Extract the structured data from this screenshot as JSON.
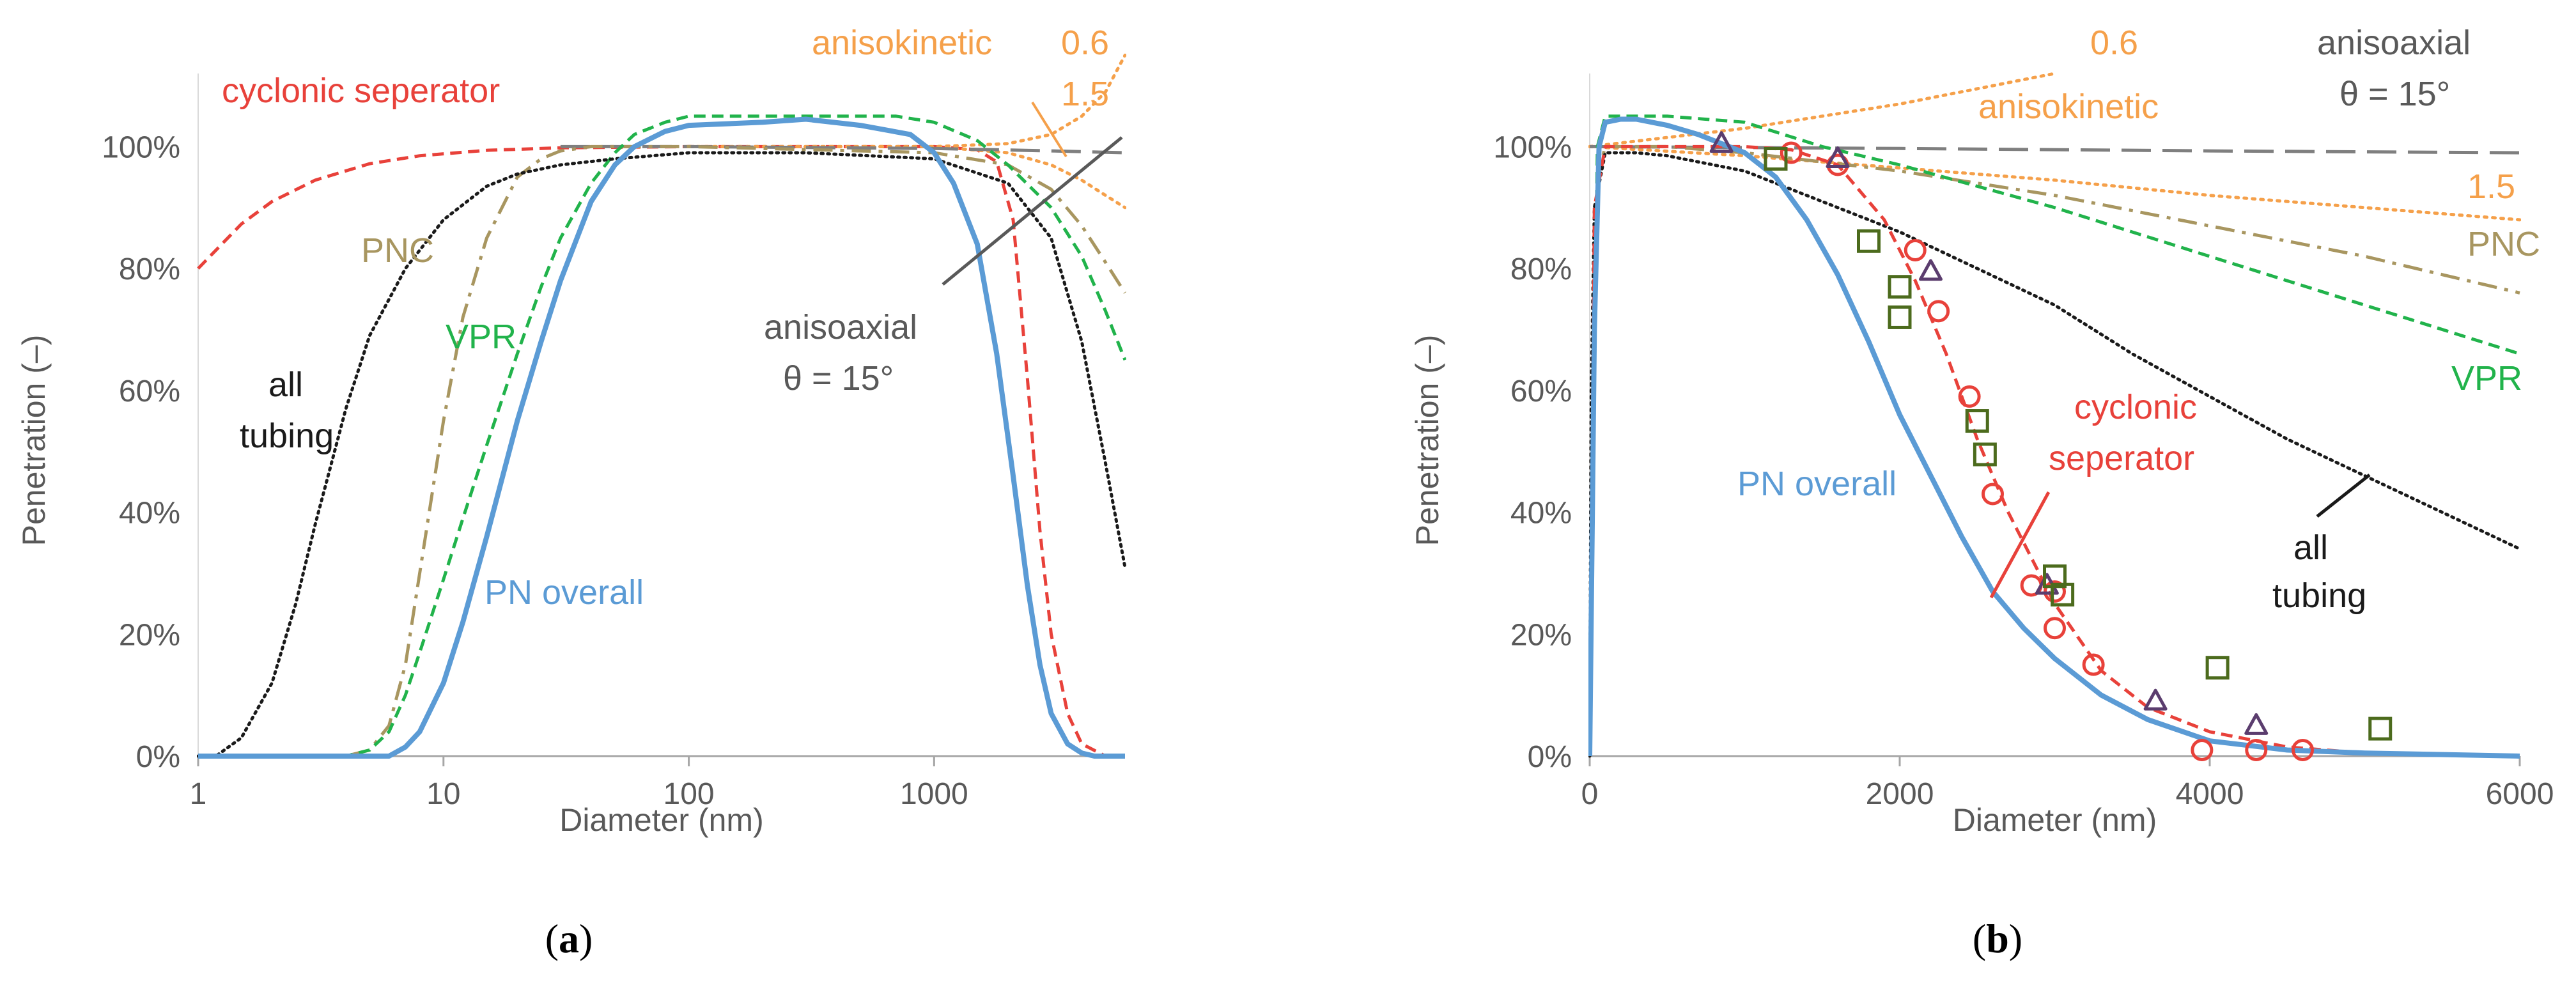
{
  "colors": {
    "cyclonic": "#E8413A",
    "anisokinetic": "#F5A04A",
    "anisoaxial": "#7F7F7F",
    "pnc": "#A89660",
    "vpr": "#21B34B",
    "tubing": "#1A1A1A",
    "pn_overall": "#5B9BD5",
    "triangle": "#5B3D6E",
    "square": "#4C6B1D",
    "axis_text": "#595959",
    "annotation_gray": "#595959"
  },
  "chart_data": [
    {
      "id": "a",
      "type": "line",
      "title": "",
      "xlabel": "Diameter (nm)",
      "ylabel": "Penetration (–)",
      "xscale": "log",
      "xlim": [
        1,
        6000
      ],
      "ylim": [
        0,
        1.12
      ],
      "x_ticks": [
        1,
        10,
        100,
        1000
      ],
      "x_tick_labels": [
        "1",
        "10",
        "100",
        "1000"
      ],
      "y_ticks": [
        0,
        0.2,
        0.4,
        0.6,
        0.8,
        1.0
      ],
      "y_tick_labels": [
        "0%",
        "20%",
        "40%",
        "60%",
        "80%",
        "100%"
      ],
      "grid": false,
      "panel_label": {
        "open": "(",
        "letter": "a",
        "close": ")"
      },
      "series": [
        {
          "name": "cyclonic seperator",
          "color_key": "cyclonic",
          "dash": "dash",
          "x": [
            1,
            1.5,
            2,
            3,
            5,
            8,
            15,
            30,
            100,
            500,
            1000,
            1500,
            1800,
            2100,
            2400,
            2700,
            3000,
            3500,
            4000,
            5000
          ],
          "y": [
            0.8,
            0.873,
            0.91,
            0.945,
            0.972,
            0.985,
            0.994,
            0.998,
            1.0,
            1.0,
            1.0,
            0.995,
            0.975,
            0.88,
            0.62,
            0.37,
            0.2,
            0.07,
            0.02,
            0.0
          ]
        },
        {
          "name": "anisokinetic 0.6",
          "color_key": "anisokinetic",
          "dash": "dot",
          "x": [
            100,
            500,
            1000,
            2000,
            3000,
            4000,
            5000,
            6000
          ],
          "y": [
            1.0,
            1.0,
            1.0,
            1.005,
            1.02,
            1.05,
            1.09,
            1.15
          ]
        },
        {
          "name": "anisokinetic 1.5",
          "color_key": "anisokinetic",
          "dash": "dot",
          "x": [
            100,
            500,
            1000,
            2000,
            3000,
            4000,
            5000,
            6000
          ],
          "y": [
            1.0,
            1.0,
            1.0,
            0.99,
            0.97,
            0.945,
            0.92,
            0.9
          ]
        },
        {
          "name": "anisoaxial θ = 15°",
          "color_key": "anisoaxial",
          "dash": "longdash",
          "x": [
            30,
            100,
            1000,
            3000,
            6000
          ],
          "y": [
            1.0,
            1.0,
            0.997,
            0.993,
            0.99
          ]
        },
        {
          "name": "PNC",
          "color_key": "pnc",
          "dash": "dashdot",
          "x": [
            1,
            4,
            5,
            6,
            7,
            8,
            10,
            12,
            15,
            20,
            25,
            30,
            40,
            60,
            100,
            1000,
            2000,
            3000,
            4000,
            5000,
            6000
          ],
          "y": [
            0,
            0,
            0.01,
            0.05,
            0.15,
            0.3,
            0.55,
            0.72,
            0.85,
            0.95,
            0.98,
            0.993,
            1.0,
            1.0,
            1.0,
            0.99,
            0.97,
            0.93,
            0.87,
            0.81,
            0.76
          ]
        },
        {
          "name": "VPR",
          "color_key": "vpr",
          "dash": "dash",
          "x": [
            1,
            4,
            5,
            6,
            7,
            8,
            10,
            12,
            15,
            20,
            25,
            30,
            40,
            50,
            60,
            80,
            100,
            200,
            700,
            1000,
            1500,
            2000,
            3000,
            4000,
            5000,
            6000
          ],
          "y": [
            0,
            0,
            0.01,
            0.04,
            0.1,
            0.17,
            0.29,
            0.39,
            0.51,
            0.66,
            0.77,
            0.85,
            0.94,
            0.99,
            1.02,
            1.04,
            1.05,
            1.05,
            1.05,
            1.04,
            1.01,
            0.97,
            0.9,
            0.82,
            0.73,
            0.65
          ]
        },
        {
          "name": "all tubing",
          "color_key": "tubing",
          "dash": "finedot",
          "x": [
            1,
            1.2,
            1.5,
            2,
            2.5,
            3,
            4,
            5,
            7,
            10,
            15,
            20,
            30,
            50,
            100,
            300,
            1000,
            2000,
            3000,
            4000,
            5000,
            6000
          ],
          "y": [
            0,
            0.002,
            0.03,
            0.12,
            0.25,
            0.38,
            0.57,
            0.69,
            0.8,
            0.88,
            0.935,
            0.955,
            0.97,
            0.98,
            0.99,
            0.99,
            0.98,
            0.94,
            0.85,
            0.68,
            0.48,
            0.31
          ]
        },
        {
          "name": "PN overall",
          "color_key": "pn_overall",
          "dash": "solid",
          "x": [
            1,
            5,
            6,
            7,
            8,
            10,
            12,
            15,
            20,
            25,
            30,
            40,
            50,
            60,
            80,
            100,
            200,
            300,
            500,
            800,
            1000,
            1200,
            1500,
            1800,
            2100,
            2400,
            2700,
            3000,
            3500,
            4000,
            4500,
            5000,
            6000
          ],
          "y": [
            0,
            0,
            0,
            0.015,
            0.04,
            0.12,
            0.22,
            0.36,
            0.55,
            0.68,
            0.78,
            0.91,
            0.97,
            1.0,
            1.025,
            1.035,
            1.04,
            1.045,
            1.035,
            1.02,
            0.99,
            0.94,
            0.84,
            0.66,
            0.46,
            0.28,
            0.15,
            0.07,
            0.02,
            0.005,
            0.0,
            0.0,
            0.0
          ]
        }
      ],
      "annotations": [
        {
          "text": "cyclonic seperator",
          "color_key": "cyclonic"
        },
        {
          "text": "anisokinetic",
          "color_key": "anisokinetic"
        },
        {
          "text": "0.6",
          "color_key": "anisokinetic"
        },
        {
          "text": "1.5",
          "color_key": "anisokinetic"
        },
        {
          "text": "PNC",
          "color_key": "pnc"
        },
        {
          "text": "VPR",
          "color_key": "vpr"
        },
        {
          "text": "all",
          "color_key": "tubing"
        },
        {
          "text": "tubing",
          "color_key": "tubing"
        },
        {
          "text": "anisoaxial",
          "color_key": "annotation_gray"
        },
        {
          "text": "θ = 15°",
          "color_key": "annotation_gray"
        },
        {
          "text": "PN overall",
          "color_key": "pn_overall"
        }
      ]
    },
    {
      "id": "b",
      "type": "line",
      "title": "",
      "xlabel": "Diameter (nm)",
      "ylabel": "Penetration (–)",
      "xscale": "linear",
      "xlim": [
        0,
        6000
      ],
      "ylim": [
        0,
        1.12
      ],
      "x_ticks": [
        0,
        2000,
        4000,
        6000
      ],
      "x_tick_labels": [
        "0",
        "2000",
        "4000",
        "6000"
      ],
      "y_ticks": [
        0,
        0.2,
        0.4,
        0.6,
        0.8,
        1.0
      ],
      "y_tick_labels": [
        "0%",
        "20%",
        "40%",
        "60%",
        "80%",
        "100%"
      ],
      "grid": false,
      "panel_label": {
        "open": "(",
        "letter": "b",
        "close": ")"
      },
      "series": [
        {
          "name": "anisokinetic 0.6",
          "color_key": "anisokinetic",
          "dash": "dot",
          "x": [
            0,
            1000,
            2000,
            3000
          ],
          "y": [
            1.0,
            1.03,
            1.07,
            1.12
          ]
        },
        {
          "name": "anisokinetic 1.5",
          "color_key": "anisokinetic",
          "dash": "dot",
          "x": [
            0,
            1000,
            2000,
            3000,
            4000,
            5000,
            6000
          ],
          "y": [
            1.0,
            0.985,
            0.965,
            0.945,
            0.92,
            0.9,
            0.88
          ]
        },
        {
          "name": "anisoaxial θ = 15°",
          "color_key": "anisoaxial",
          "dash": "longdash",
          "x": [
            0,
            2000,
            4000,
            6000
          ],
          "y": [
            1.0,
            0.997,
            0.993,
            0.99
          ]
        },
        {
          "name": "PNC",
          "color_key": "pnc",
          "dash": "dashdot",
          "x": [
            0,
            20,
            50,
            100,
            500,
            1000,
            2000,
            3000,
            4000,
            5000,
            6000
          ],
          "y": [
            0,
            0.5,
            0.95,
            1.0,
            1.0,
            0.99,
            0.96,
            0.92,
            0.87,
            0.82,
            0.76
          ]
        },
        {
          "name": "VPR",
          "color_key": "vpr",
          "dash": "dash",
          "x": [
            0,
            20,
            50,
            100,
            500,
            1000,
            1500,
            2000,
            3000,
            4000,
            5000,
            6000
          ],
          "y": [
            0,
            0.5,
            1.0,
            1.05,
            1.05,
            1.04,
            1.0,
            0.97,
            0.9,
            0.82,
            0.74,
            0.66
          ]
        },
        {
          "name": "all tubing",
          "color_key": "tubing",
          "dash": "finedot",
          "x": [
            0,
            10,
            30,
            100,
            300,
            500,
            1000,
            1500,
            2000,
            2500,
            3000,
            3500,
            4000,
            4500,
            5000,
            5500,
            6000
          ],
          "y": [
            0,
            0.6,
            0.9,
            0.99,
            0.99,
            0.985,
            0.96,
            0.91,
            0.86,
            0.8,
            0.74,
            0.66,
            0.59,
            0.52,
            0.46,
            0.4,
            0.34
          ]
        },
        {
          "name": "cyclonic seperator",
          "color_key": "cyclonic",
          "dash": "dash",
          "x": [
            0,
            30,
            100,
            500,
            1000,
            1300,
            1600,
            1900,
            2100,
            2300,
            2500,
            2700,
            3000,
            3300,
            3600,
            4000,
            4500,
            5000,
            6000
          ],
          "y": [
            0,
            0.9,
            1.0,
            1.0,
            1.0,
            0.995,
            0.97,
            0.88,
            0.78,
            0.66,
            0.52,
            0.4,
            0.25,
            0.14,
            0.08,
            0.04,
            0.015,
            0.005,
            0.0
          ]
        },
        {
          "name": "PN overall",
          "color_key": "pn_overall",
          "dash": "solid",
          "x": [
            0,
            30,
            60,
            100,
            200,
            300,
            500,
            700,
            1000,
            1200,
            1400,
            1600,
            1800,
            2000,
            2200,
            2400,
            2600,
            2800,
            3000,
            3300,
            3600,
            4000,
            4500,
            5000,
            6000
          ],
          "y": [
            0,
            0.7,
            1.0,
            1.04,
            1.045,
            1.045,
            1.035,
            1.02,
            0.99,
            0.95,
            0.88,
            0.79,
            0.68,
            0.56,
            0.46,
            0.36,
            0.27,
            0.21,
            0.16,
            0.1,
            0.06,
            0.025,
            0.01,
            0.005,
            0.0
          ]
        }
      ],
      "markers": [
        {
          "name": "cyclonic measurements",
          "shape": "circle",
          "color_key": "cyclonic",
          "x": [
            1300,
            1600,
            2100,
            2250,
            2450,
            2600,
            2850,
            3000,
            3000,
            3250,
            3950,
            4300,
            4600
          ],
          "y": [
            0.99,
            0.97,
            0.83,
            0.73,
            0.59,
            0.43,
            0.28,
            0.27,
            0.21,
            0.15,
            0.01,
            0.01,
            0.01
          ]
        },
        {
          "name": "triangle measurements",
          "shape": "triangle",
          "color_key": "triangle",
          "x": [
            850,
            1600,
            2200,
            2950,
            3650,
            4300
          ],
          "y": [
            1.005,
            0.98,
            0.795,
            0.28,
            0.09,
            0.05
          ]
        },
        {
          "name": "square measurements",
          "shape": "square",
          "color_key": "square",
          "x": [
            1200,
            1800,
            2000,
            2000,
            2500,
            2550,
            3000,
            3050,
            4050,
            5100
          ],
          "y": [
            0.98,
            0.845,
            0.77,
            0.72,
            0.55,
            0.495,
            0.295,
            0.265,
            0.145,
            0.045
          ]
        }
      ],
      "annotations": [
        {
          "text": "0.6",
          "color_key": "anisokinetic"
        },
        {
          "text": "anisokinetic",
          "color_key": "anisokinetic"
        },
        {
          "text": "anisoaxial",
          "color_key": "annotation_gray"
        },
        {
          "text": "θ = 15°",
          "color_key": "annotation_gray"
        },
        {
          "text": "1.5",
          "color_key": "anisokinetic"
        },
        {
          "text": "PNC",
          "color_key": "pnc"
        },
        {
          "text": "VPR",
          "color_key": "vpr"
        },
        {
          "text": "cyclonic",
          "color_key": "cyclonic"
        },
        {
          "text": "seperator",
          "color_key": "cyclonic"
        },
        {
          "text": "PN overall",
          "color_key": "pn_overall"
        },
        {
          "text": "all",
          "color_key": "tubing"
        },
        {
          "text": "tubing",
          "color_key": "tubing"
        }
      ]
    }
  ]
}
